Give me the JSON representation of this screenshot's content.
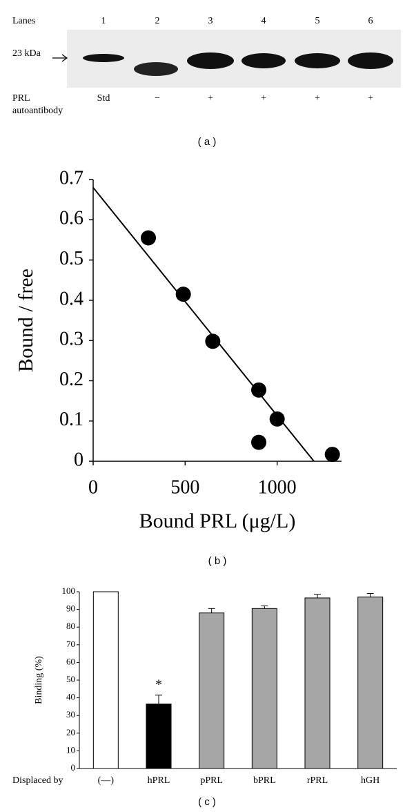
{
  "blot": {
    "header": "Lanes",
    "lanes": [
      "1",
      "2",
      "3",
      "4",
      "5",
      "6"
    ],
    "marker": "23 kDa",
    "row_label": [
      "PRL",
      "autoantibody"
    ],
    "treatments": [
      "Std",
      "−",
      "+",
      "+",
      "+",
      "+"
    ],
    "caption": "( a )"
  },
  "chart_data": [
    {
      "type": "scatter",
      "caption": "( b )",
      "xlabel": "Bound PRL (μg/L)",
      "ylabel": "Bound / free",
      "x": [
        300,
        490,
        650,
        900,
        1000,
        900,
        1300
      ],
      "y": [
        0.555,
        0.415,
        0.298,
        0.177,
        0.105,
        0.047,
        0.017
      ],
      "color": "#000000",
      "fit_line": {
        "x": [
          0,
          1200
        ],
        "y": [
          0.68,
          0
        ]
      },
      "xlim": [
        0,
        1350
      ],
      "ylim": [
        0,
        0.7
      ],
      "xticks": [
        0,
        500,
        1000
      ],
      "yticks": [
        0,
        0.1,
        0.2,
        0.3,
        0.4,
        0.5,
        0.6,
        0.7
      ]
    },
    {
      "type": "bar",
      "caption": "( c )",
      "ylabel": "Binding (%)",
      "xlabel": "Displaced by",
      "categories": [
        "(—)",
        "hPRL",
        "pPRL",
        "bPRL",
        "rPRL",
        "hGH"
      ],
      "values": [
        100,
        36.5,
        88,
        90.5,
        96.5,
        97
      ],
      "errors": [
        null,
        5,
        2.5,
        1.5,
        2,
        2
      ],
      "colors": [
        "#ffffff",
        "#000000",
        "#a6a6a6",
        "#a6a6a6",
        "#a6a6a6",
        "#a6a6a6"
      ],
      "annotation": {
        "text": "*",
        "category": "hPRL"
      },
      "ylim": [
        0,
        100
      ],
      "yticks": [
        0,
        10,
        20,
        30,
        40,
        50,
        60,
        70,
        80,
        90,
        100
      ]
    }
  ]
}
